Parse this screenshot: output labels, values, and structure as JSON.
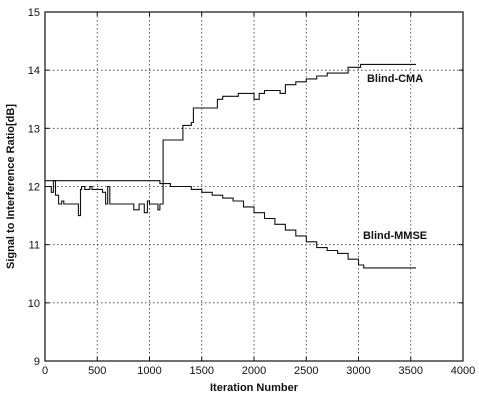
{
  "chart_data": {
    "type": "line",
    "title": "",
    "xlabel": "Iteration Number",
    "ylabel": "Signal to Interference Ratio[dB]",
    "xlim": [
      0,
      4000
    ],
    "ylim": [
      9,
      15
    ],
    "xticks": [
      0,
      500,
      1000,
      1500,
      2000,
      2500,
      3000,
      3500,
      4000
    ],
    "yticks": [
      9,
      10,
      11,
      12,
      13,
      14,
      15
    ],
    "grid": true,
    "series": [
      {
        "name": "Blind-CMA",
        "x": [
          0,
          60,
          80,
          100,
          130,
          160,
          180,
          300,
          320,
          340,
          350,
          380,
          430,
          450,
          500,
          550,
          580,
          600,
          620,
          650,
          700,
          750,
          800,
          850,
          900,
          950,
          980,
          1000,
          1050,
          1080,
          1100,
          1120,
          1130,
          1150,
          1300,
          1320,
          1400,
          1420,
          1500,
          1650,
          1700,
          1800,
          1850,
          1950,
          2000,
          2050,
          2100,
          2200,
          2250,
          2300,
          2400,
          2500,
          2600,
          2700,
          2800,
          2900,
          3000,
          3020,
          3100,
          3550
        ],
        "y": [
          12.0,
          11.9,
          12.1,
          11.85,
          11.7,
          11.75,
          11.7,
          11.7,
          11.5,
          11.95,
          12.0,
          11.95,
          12.0,
          11.95,
          11.95,
          11.9,
          11.7,
          12.0,
          11.7,
          11.7,
          11.7,
          11.7,
          11.7,
          11.6,
          11.7,
          11.55,
          11.75,
          11.7,
          11.7,
          11.6,
          11.7,
          11.7,
          12.8,
          12.8,
          12.8,
          13.05,
          13.1,
          13.35,
          13.35,
          13.5,
          13.55,
          13.55,
          13.6,
          13.6,
          13.5,
          13.6,
          13.65,
          13.65,
          13.6,
          13.75,
          13.8,
          13.85,
          13.9,
          13.95,
          13.95,
          14.05,
          14.05,
          14.1,
          14.1,
          14.1
        ]
      },
      {
        "name": "Blind-MMSE",
        "x": [
          0,
          200,
          400,
          600,
          800,
          1000,
          1100,
          1200,
          1300,
          1400,
          1500,
          1600,
          1700,
          1800,
          1900,
          2000,
          2100,
          2200,
          2300,
          2400,
          2500,
          2600,
          2700,
          2800,
          2900,
          3000,
          3050,
          3200,
          3400,
          3550
        ],
        "y": [
          12.1,
          12.1,
          12.1,
          12.1,
          12.1,
          12.1,
          12.05,
          12.0,
          12.0,
          11.95,
          11.9,
          11.85,
          11.8,
          11.75,
          11.65,
          11.55,
          11.45,
          11.35,
          11.25,
          11.15,
          11.05,
          10.95,
          10.9,
          10.85,
          10.75,
          10.65,
          10.6,
          10.6,
          10.6,
          10.6
        ]
      }
    ],
    "annotations": [
      {
        "text": "Blind-CMA",
        "x": 3350,
        "y": 13.8
      },
      {
        "text": "Blind-MMSE",
        "x": 3350,
        "y": 11.1
      }
    ]
  }
}
